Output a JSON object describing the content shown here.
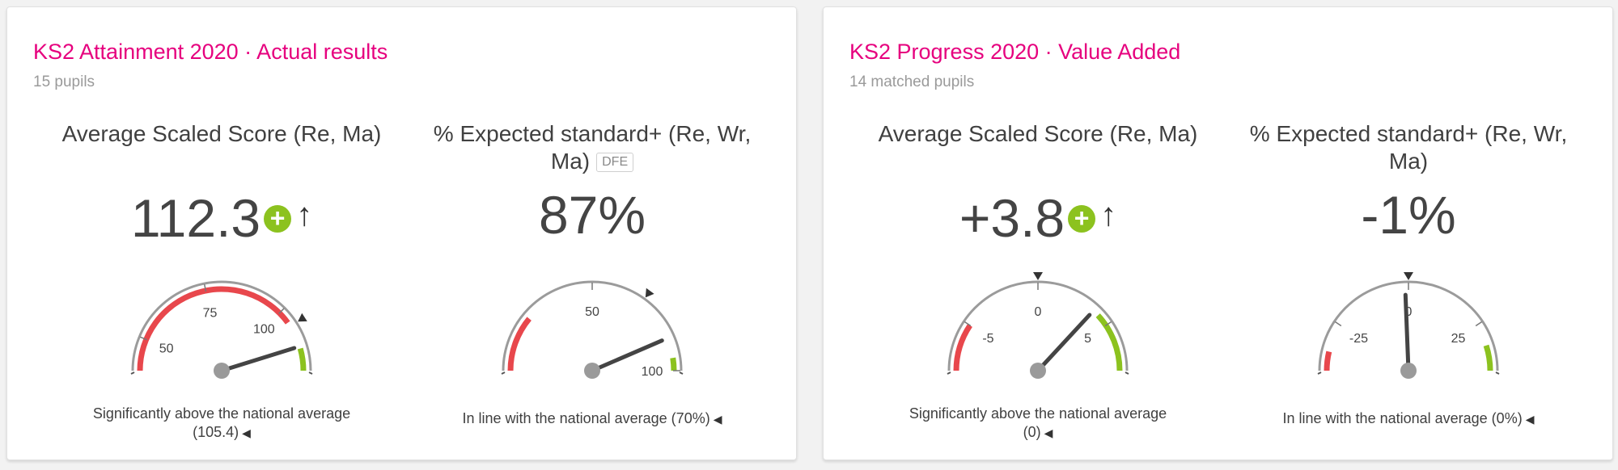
{
  "cards": [
    {
      "title": "KS2 Attainment 2020 · Actual results",
      "subtitle": "15 pupils",
      "metrics": [
        {
          "title": "Average Scaled Score (Re, Ma)",
          "value": "112.3",
          "caption": "Significantly above the national average (105.4)",
          "gauge": {
            "min": 40,
            "max": 120,
            "value": 112.3,
            "national": 105.4,
            "labels": [
              "50",
              "75",
              "100"
            ],
            "label_values": [
              50,
              75,
              100
            ],
            "red_range": [
              40,
              104
            ],
            "green_range": [
              113,
              120
            ]
          }
        },
        {
          "title": "% Expected standard+ (Re, Wr, Ma)",
          "badge": "DFE",
          "value": "87%",
          "caption": "In line with the national average (70%)",
          "gauge": {
            "min": 0,
            "max": 100,
            "value": 87,
            "national": 70,
            "labels": [
              "50",
              "100"
            ],
            "label_values": [
              50,
              100
            ],
            "red_range": [
              0,
              22
            ],
            "green_range": [
              95,
              100
            ]
          }
        }
      ]
    },
    {
      "title": "KS2 Progress 2020 · Value Added",
      "subtitle": "14 matched pupils",
      "metrics": [
        {
          "title": "Average Scaled Score (Re, Ma)",
          "value": "+3.8",
          "caption": "Significantly above the national average (0)",
          "gauge": {
            "min": -8,
            "max": 8,
            "value": 3.8,
            "national": 0,
            "labels": [
              "-5",
              "0",
              "5"
            ],
            "label_values": [
              -5,
              0,
              5
            ],
            "red_range": [
              -8,
              -5
            ],
            "green_range": [
              4.2,
              8
            ]
          }
        },
        {
          "title": "% Expected standard+ (Re, Wr, Ma)",
          "value": "-1%",
          "caption": "In line with the national average (0%)",
          "gauge": {
            "min": -40,
            "max": 40,
            "value": -1,
            "national": 0,
            "labels": [
              "-25",
              "0",
              "25"
            ],
            "label_values": [
              -25,
              0,
              25
            ],
            "red_range": [
              -40,
              -34
            ],
            "green_range": [
              32,
              40
            ]
          }
        }
      ]
    }
  ],
  "colors": {
    "title": "#e6007e",
    "red": "#e8474c",
    "green": "#8cc21f",
    "needle": "#444444",
    "hub": "#9a9a9a"
  },
  "icons": {
    "significant": "plus-circle-icon",
    "trend": "up-arrow-icon",
    "caption_marker": "left-triangle-icon",
    "national_marker": "triangle-marker-icon"
  }
}
